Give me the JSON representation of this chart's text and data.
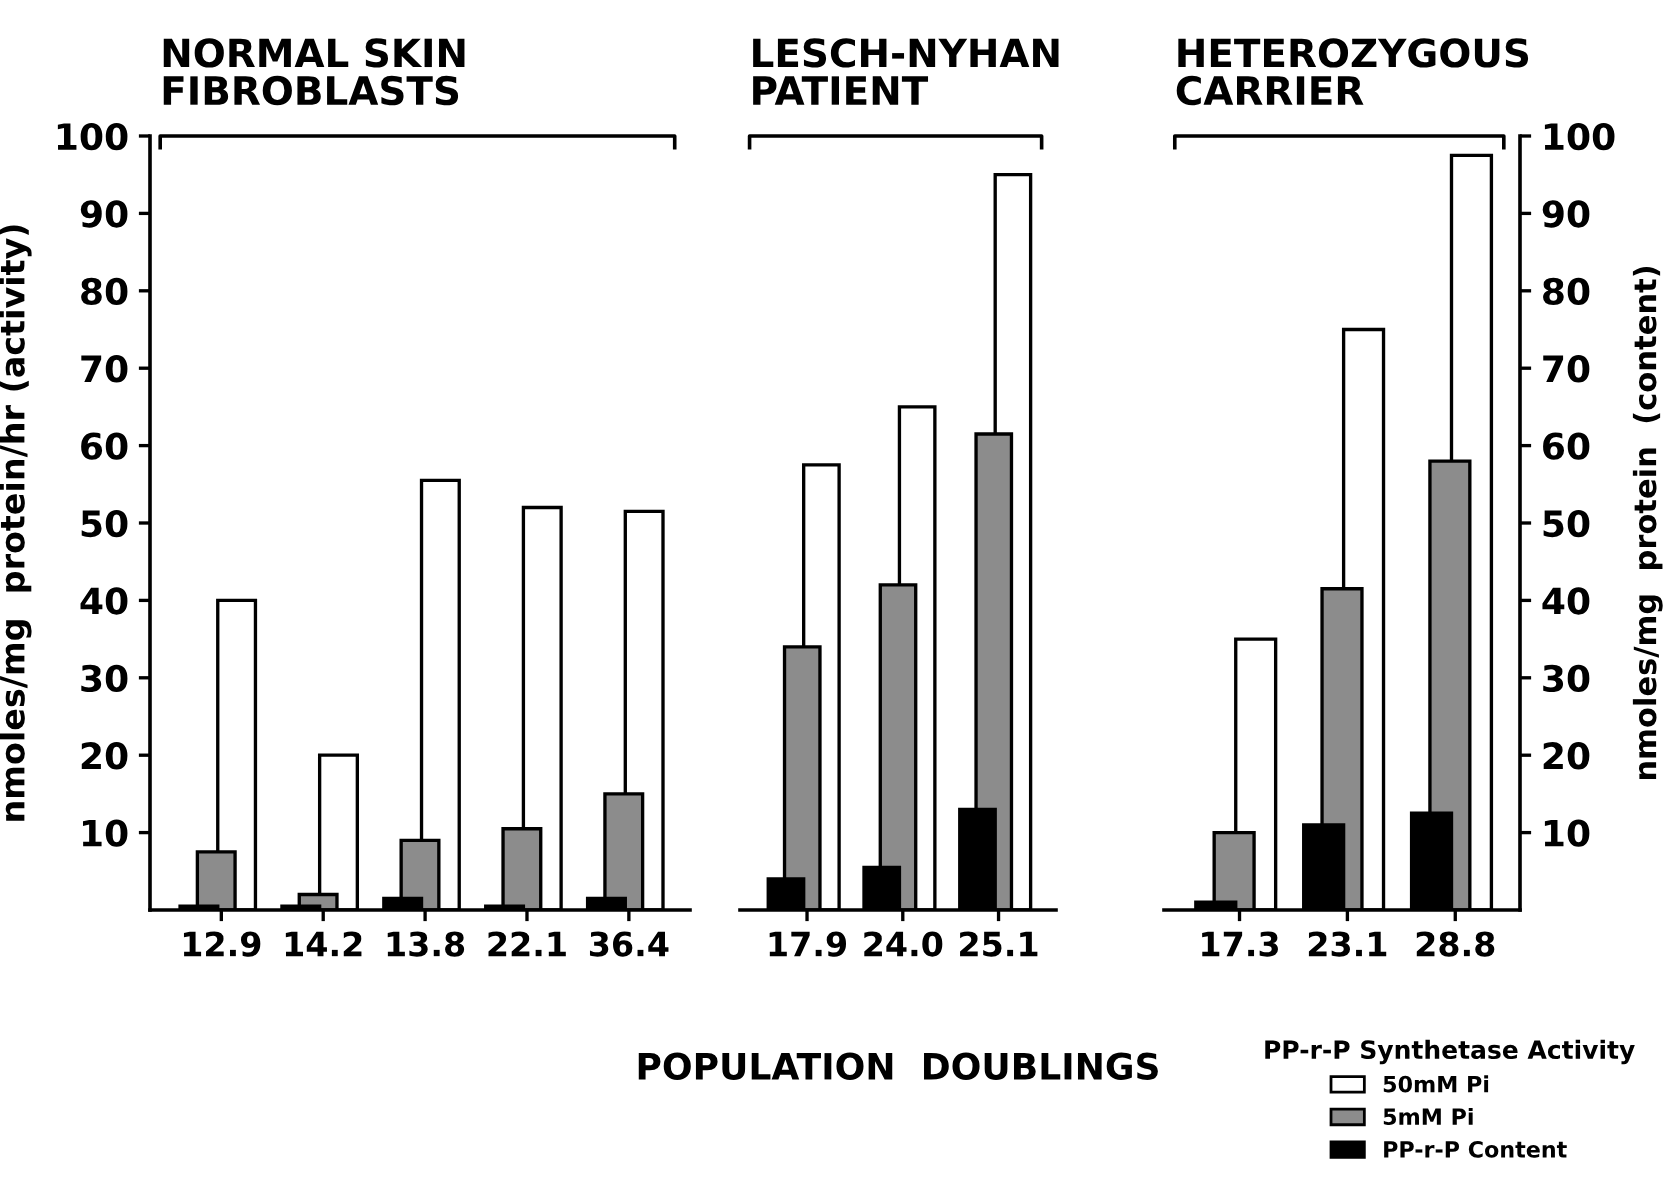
{
  "chart_data": [
    {
      "type": "bar",
      "title": "NORMAL SKIN\nFIBROBLASTS",
      "ylabel": "nmoles/mg  protein/hr (activity)",
      "categories": [
        "12.9",
        "14.2",
        "13.8",
        "22.1",
        "36.4"
      ],
      "ylim": [
        0,
        100
      ],
      "yticks": [
        10,
        20,
        30,
        40,
        50,
        60,
        70,
        80,
        90,
        100
      ],
      "series": [
        {
          "color": "#000000",
          "values": [
            0.5,
            0.5,
            1.5,
            0.5,
            1.5
          ]
        },
        {
          "color": "#8c8c8c",
          "values": [
            7.5,
            2,
            9,
            10.5,
            15
          ]
        },
        {
          "color": "#ffffff",
          "values": [
            40,
            20,
            55.5,
            52,
            51.5
          ]
        }
      ]
    },
    {
      "type": "bar",
      "title": "LESCH-NYHAN\nPATIENT",
      "xlabel": "POPULATION  DOUBLINGS",
      "categories": [
        "17.9",
        "24.0",
        "25.1"
      ],
      "ylim": [
        0,
        100
      ],
      "tick_labels": "x",
      "series": [
        {
          "color": "#000000",
          "values": [
            4,
            5.5,
            13
          ]
        },
        {
          "color": "#8c8c8c",
          "values": [
            34,
            42,
            61.5
          ]
        },
        {
          "color": "#ffffff",
          "values": [
            57.5,
            65,
            95
          ]
        }
      ]
    },
    {
      "type": "bar",
      "title": "HETEROZYGOUS\nCARRIER",
      "ylabel": "nmoles/mg  protein  (content)",
      "categories": [
        "17.3",
        "23.1",
        "28.8"
      ],
      "ylim": [
        0,
        100
      ],
      "yticks": [
        10,
        20,
        30,
        40,
        50,
        60,
        70,
        80,
        90,
        100
      ],
      "legend": "bottom right",
      "legend_title": "PP-r-P Synthetase Activity",
      "series": [
        {
          "name": "PP-r-P Content",
          "color": "#000000",
          "values": [
            1,
            11,
            12.5
          ]
        },
        {
          "name": "5mM Pi",
          "color": "#8c8c8c",
          "values": [
            10,
            41.5,
            58
          ]
        },
        {
          "name": "50mM Pi",
          "color": "#ffffff",
          "values": [
            35,
            75,
            97.5
          ]
        }
      ]
    }
  ]
}
